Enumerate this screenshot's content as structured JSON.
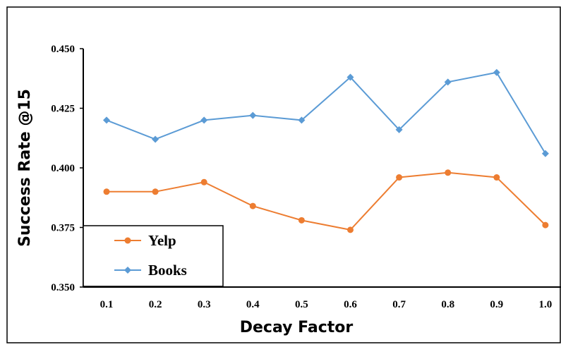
{
  "chart_data": {
    "type": "line",
    "xlabel": "Decay Factor",
    "ylabel": "Success Rate @15",
    "x": [
      "0.1",
      "0.2",
      "0.3",
      "0.4",
      "0.5",
      "0.6",
      "0.7",
      "0.8",
      "0.9",
      "1.0"
    ],
    "ylim": [
      0.35,
      0.45
    ],
    "yticks": [
      "0.350",
      "0.375",
      "0.400",
      "0.425",
      "0.450"
    ],
    "grid": false,
    "legend_position": "bottom-left",
    "series": [
      {
        "name": "Yelp",
        "color": "#ED7D31",
        "marker": "circle",
        "values": [
          0.39,
          0.39,
          0.394,
          0.384,
          0.378,
          0.374,
          0.396,
          0.398,
          0.396,
          0.376
        ]
      },
      {
        "name": "Books",
        "color": "#5B9BD5",
        "marker": "diamond",
        "values": [
          0.42,
          0.412,
          0.42,
          0.422,
          0.42,
          0.438,
          0.416,
          0.436,
          0.44,
          0.406
        ]
      }
    ]
  }
}
